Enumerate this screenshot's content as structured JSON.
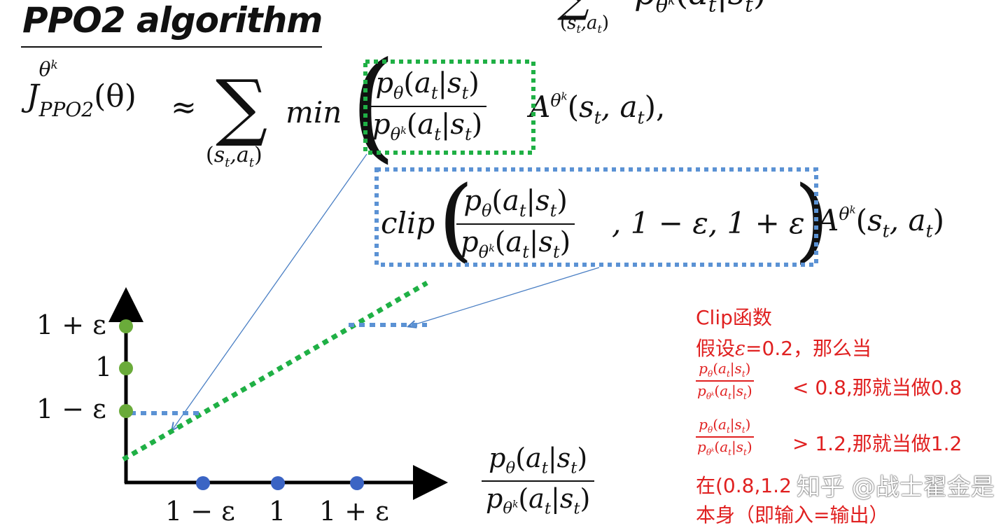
{
  "title": "PPO2 algorithm",
  "formula": {
    "lhs_J": "J",
    "lhs_sup": "θ",
    "lhs_sup2": "k",
    "lhs_sub": "PPO2",
    "lhs_arg": "(θ)",
    "approx": "≈",
    "sigma": "∑",
    "sigma_sub": "(s",
    "sigma_sub_t": "t",
    "sigma_sub_mid": ",a",
    "sigma_sub_t2": "t",
    "sigma_sub_close": ")",
    "min": "min",
    "ratio_num": "p",
    "ratio_num_sub": "θ",
    "ratio_num_arg": "(a",
    "ratio_num_t": "t",
    "ratio_num_bar": "|s",
    "ratio_num_t2": "t",
    "ratio_num_close": ")",
    "ratio_den": "p",
    "ratio_den_sub": "θ",
    "ratio_den_sub_k": "k",
    "advantage": "A",
    "adv_sup": "θ",
    "adv_sup_k": "k",
    "adv_arg": "(s",
    "adv_t": "t",
    "adv_mid": ", a",
    "adv_t2": "t",
    "adv_close": "),",
    "clip": "clip",
    "clip_args": ", 1 − ε, 1 + ε",
    "adv2_close": ")"
  },
  "top_fragment": {
    "sigma_sub": "(s",
    "sigma_sub_t": "t",
    "sigma_sub_mid": ",a",
    "sigma_sub_t2": "t",
    "sigma_sub_close": ")",
    "p": "p",
    "p_sub": "θ",
    "p_sub_k": "k",
    "arg": "(a",
    "arg_t": "t",
    "arg_bar": "|s",
    "arg_t2": "t",
    "arg_close": ")"
  },
  "chart": {
    "y_ticks": [
      "1 + ε",
      "1",
      "1 − ε"
    ],
    "x_ticks": [
      "1 − ε",
      "1",
      "1 + ε"
    ],
    "x_axis_label_num": "p",
    "x_axis_label_den": "p"
  },
  "note": {
    "line1": "Clip函数",
    "line2_a": "假设",
    "line2_eps": "ε",
    "line2_b": "=0.2，那么当",
    "cond1": "< 0.8,那就当做0.8",
    "cond2": "> 1.2,那就当做1.2",
    "line5": "在(0.8,1.2",
    "line6": "本身（即输入=输出）",
    "frac_num": "p",
    "frac_num_sub": "θ",
    "frac_num_arg": "(a",
    "frac_t": "t",
    "frac_bar": "|s",
    "frac_t2": "t",
    "frac_close": ")",
    "frac_den": "p",
    "frac_den_sub": "θ",
    "frac_den_k": "k"
  },
  "watermark": "知乎 @战士翟金是"
}
